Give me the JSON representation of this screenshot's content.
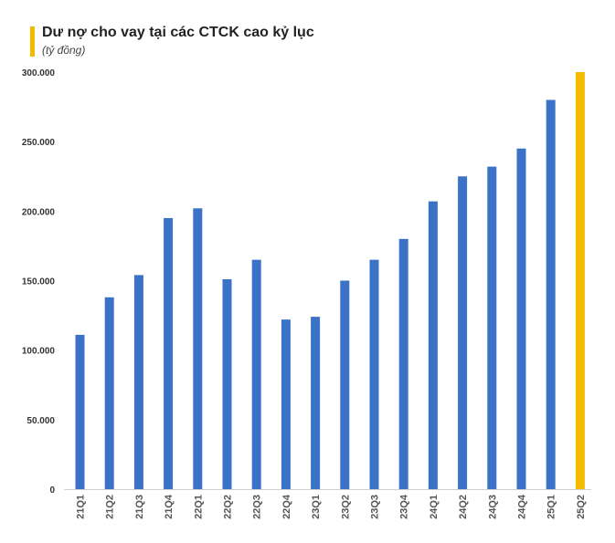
{
  "header": {
    "title": "Dư nợ cho vay tại các CTCK cao kỷ lục",
    "subtitle": "(tỷ đồng)"
  },
  "colors": {
    "accent": "#F5B900",
    "bar": "#3A72C8",
    "highlight": "#F5B900"
  },
  "chart_data": {
    "type": "bar",
    "title": "Dư nợ cho vay tại các CTCK cao kỷ lục",
    "subtitle": "(tỷ đồng)",
    "xlabel": "",
    "ylabel": "",
    "ylim": [
      0,
      300000
    ],
    "yticks": [
      0,
      50000,
      100000,
      150000,
      200000,
      250000,
      300000
    ],
    "ytick_labels": [
      "0",
      "50.000",
      "100.000",
      "150.000",
      "200.000",
      "250.000",
      "300.000"
    ],
    "categories": [
      "21Q1",
      "21Q2",
      "21Q3",
      "21Q4",
      "22Q1",
      "22Q2",
      "22Q3",
      "22Q4",
      "23Q1",
      "23Q2",
      "23Q3",
      "23Q4",
      "24Q1",
      "24Q2",
      "24Q3",
      "24Q4",
      "25Q1",
      "25Q2"
    ],
    "values": [
      111000,
      138000,
      154000,
      195000,
      202000,
      151000,
      165000,
      122000,
      124000,
      150000,
      165000,
      180000,
      207000,
      225000,
      232000,
      245000,
      280000,
      300000
    ],
    "highlight_category": "25Q2",
    "grid": false,
    "legend": "none"
  }
}
